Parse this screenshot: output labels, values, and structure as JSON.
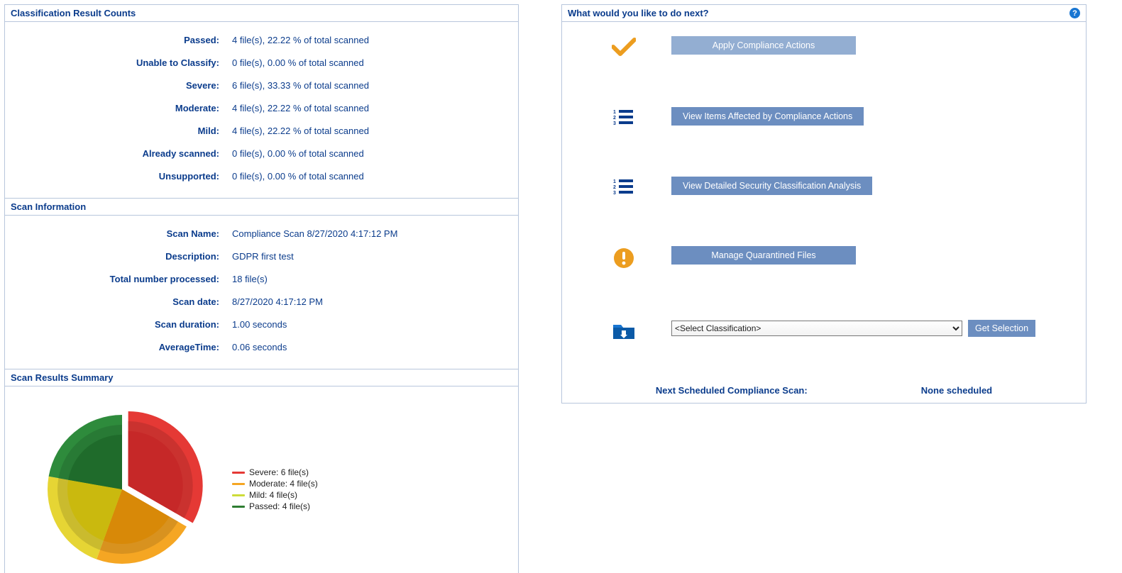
{
  "colors": {
    "brand_text": "#0b3c8c",
    "panel_border": "#b8c6dc",
    "button_bg": "#6c8ec0",
    "button_fg": "#ffffff",
    "orange": "#ec9d1f",
    "help_bg": "#1976d2"
  },
  "classification_counts": {
    "title": "Classification Result Counts",
    "rows": [
      {
        "label": "Passed:",
        "value": "4 file(s), 22.22 % of total scanned"
      },
      {
        "label": "Unable to Classify:",
        "value": "0 file(s), 0.00 % of total scanned"
      },
      {
        "label": "Severe:",
        "value": "6 file(s), 33.33 % of total scanned"
      },
      {
        "label": "Moderate:",
        "value": "4 file(s), 22.22 % of total scanned"
      },
      {
        "label": "Mild:",
        "value": "4 file(s), 22.22 % of total scanned"
      },
      {
        "label": "Already scanned:",
        "value": "0 file(s), 0.00 % of total scanned"
      },
      {
        "label": "Unsupported:",
        "value": "0 file(s), 0.00 % of total scanned"
      }
    ]
  },
  "scan_info": {
    "title": "Scan Information",
    "rows": [
      {
        "label": "Scan Name:",
        "value": "Compliance Scan 8/27/2020 4:17:12 PM"
      },
      {
        "label": "Description:",
        "value": "GDPR first test"
      },
      {
        "label": "Total number processed:",
        "value": "18 file(s)"
      },
      {
        "label": "Scan date:",
        "value": "8/27/2020 4:17:12 PM"
      },
      {
        "label": "Scan duration:",
        "value": "1.00 seconds"
      },
      {
        "label": "AverageTime:",
        "value": "0.06 seconds"
      }
    ]
  },
  "summary": {
    "title": "Scan Results Summary",
    "chart": {
      "type": "pie",
      "exploded_index": 0,
      "radius_outer": 105,
      "radius_inner_step": 14,
      "explode_offset": 10,
      "background_color": "#ffffff",
      "series": [
        {
          "label": "Severe: 6 file(s)",
          "value": 6,
          "color": "#e53935",
          "inner": "#c62828"
        },
        {
          "label": "Moderate: 4 file(s)",
          "value": 4,
          "color": "#f5a623",
          "inner": "#d88908"
        },
        {
          "label": "Mild: 4 file(s)",
          "value": 4,
          "color": "#e6d534",
          "inner": "#cab90e"
        },
        {
          "label": "Passed: 4 file(s)",
          "value": 4,
          "color": "#2e8b3c",
          "inner": "#1f6b2b"
        }
      ],
      "legend_swatch_colors": [
        "#e53935",
        "#f5a623",
        "#cddc39",
        "#2e7d32"
      ],
      "legend_font_size": 12
    }
  },
  "next_actions": {
    "title": "What would you like to do next?",
    "apply_label": "Apply Compliance Actions",
    "view_affected_label": "View Items Affected by Compliance Actions",
    "view_analysis_label": "View Detailed Security Classification Analysis",
    "manage_quarantine_label": "Manage Quarantined Files",
    "select_placeholder": "<Select Classification>",
    "get_selection_label": "Get Selection"
  },
  "next_scan": {
    "label": "Next Scheduled Compliance Scan:",
    "value": "None scheduled"
  }
}
